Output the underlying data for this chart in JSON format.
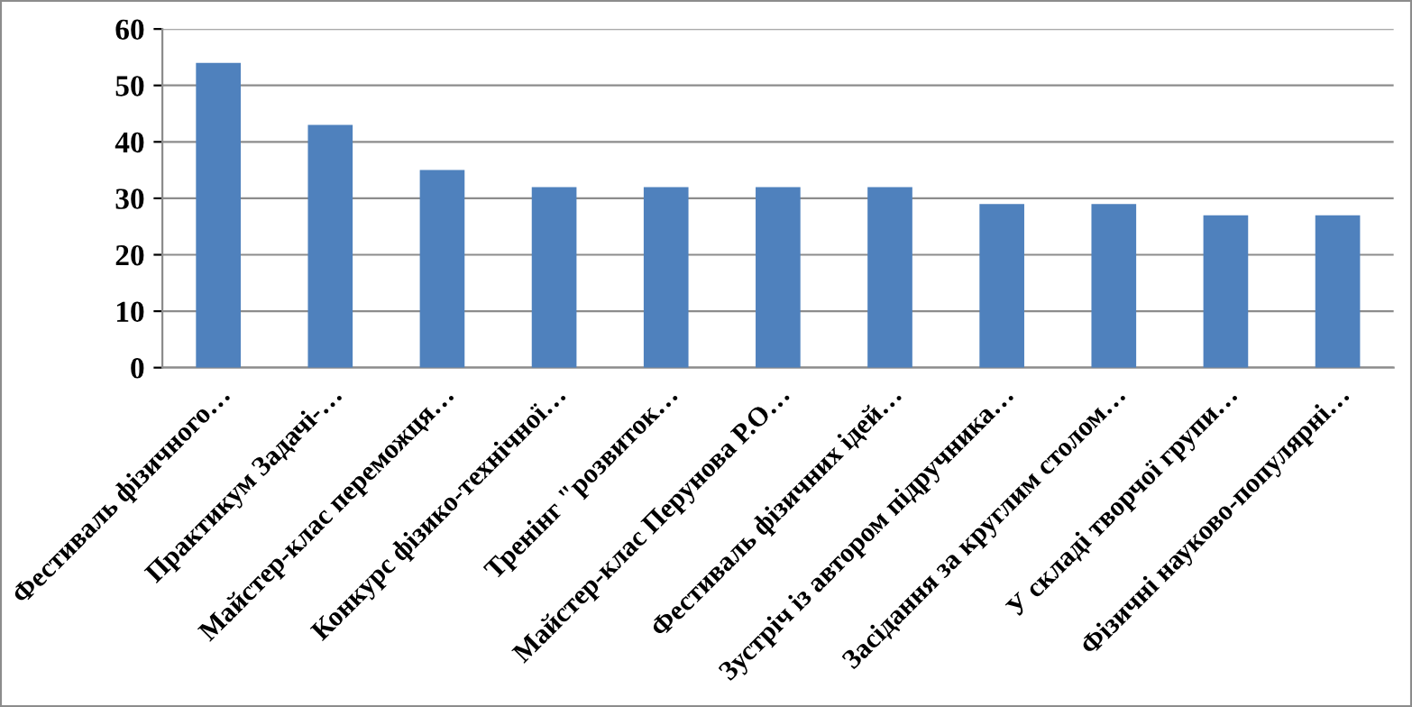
{
  "chart_data": {
    "type": "bar",
    "categories": [
      "Фестиваль фізичного…",
      "Практикум Задачі-…",
      "Майстер-клас переможця…",
      "Конкурс фізико-технічної…",
      "Тренінг \"розвиток…",
      "Майстер-клас Перунова Р.О…",
      "Фестиваль фізичних ідей…",
      "Зустріч із автором підручника…",
      "Засідання за круглим столом…",
      "У складі творчої групи…",
      "Фізичні науково-популярні…"
    ],
    "values": [
      54,
      43,
      35,
      32,
      32,
      32,
      32,
      29,
      29,
      27,
      27
    ],
    "color": "#4f81bd",
    "ylim": [
      0,
      60
    ],
    "yticks": [
      0,
      10,
      20,
      30,
      40,
      50,
      60
    ],
    "grid": "y",
    "legend": false
  }
}
